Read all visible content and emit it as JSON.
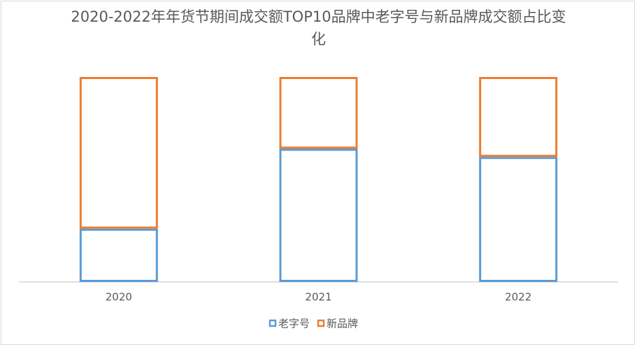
{
  "chart_data": {
    "type": "stacked_bar",
    "title": "2020-2022年年货节期间成交额TOP10品牌中老字号与新品牌成交额占比变化",
    "categories": [
      "2020",
      "2021",
      "2022"
    ],
    "series": [
      {
        "name": "老字号",
        "color": "#5b9bd5",
        "values": [
          26,
          65,
          61
        ]
      },
      {
        "name": "新品牌",
        "color": "#ed7d31",
        "values": [
          74,
          35,
          39
        ]
      }
    ],
    "legend": "bottom"
  }
}
